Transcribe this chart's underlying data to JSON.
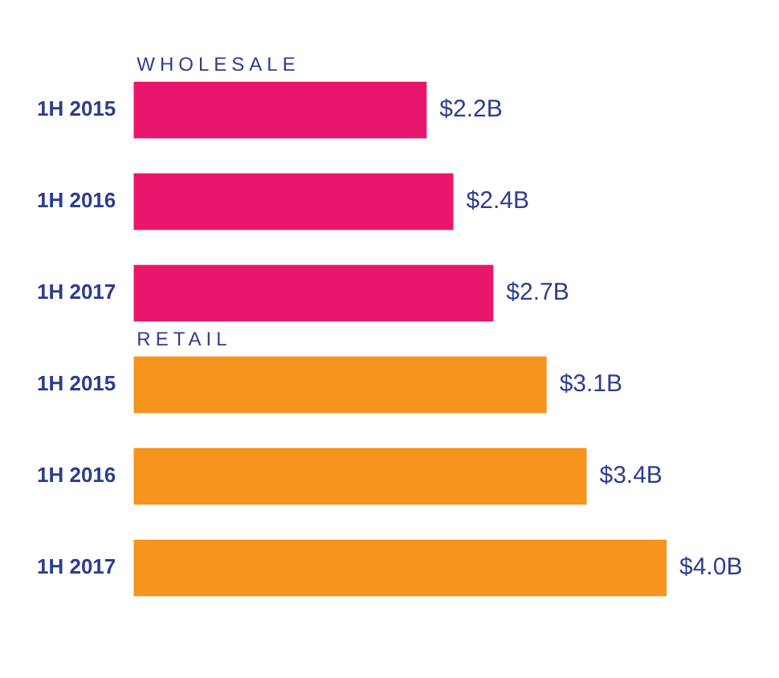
{
  "chart_data": {
    "type": "bar",
    "orientation": "horizontal",
    "categories": [
      "1H 2015",
      "1H 2016",
      "1H 2017",
      "1H 2015",
      "1H 2016",
      "1H 2017"
    ],
    "series": [
      {
        "name": "WHOLESALE",
        "color": "#e8176b",
        "values": [
          2.2,
          2.4,
          2.7,
          null,
          null,
          null
        ],
        "value_labels": [
          "$2.2B",
          "$2.4B",
          "$2.7B",
          null,
          null,
          null
        ]
      },
      {
        "name": "RETAIL",
        "color": "#f7941d",
        "values": [
          null,
          null,
          null,
          3.1,
          3.4,
          4.0
        ],
        "value_labels": [
          null,
          null,
          null,
          "$3.1B",
          "$3.4B",
          "$4.0B"
        ]
      }
    ],
    "legend": false,
    "grid": false
  }
}
